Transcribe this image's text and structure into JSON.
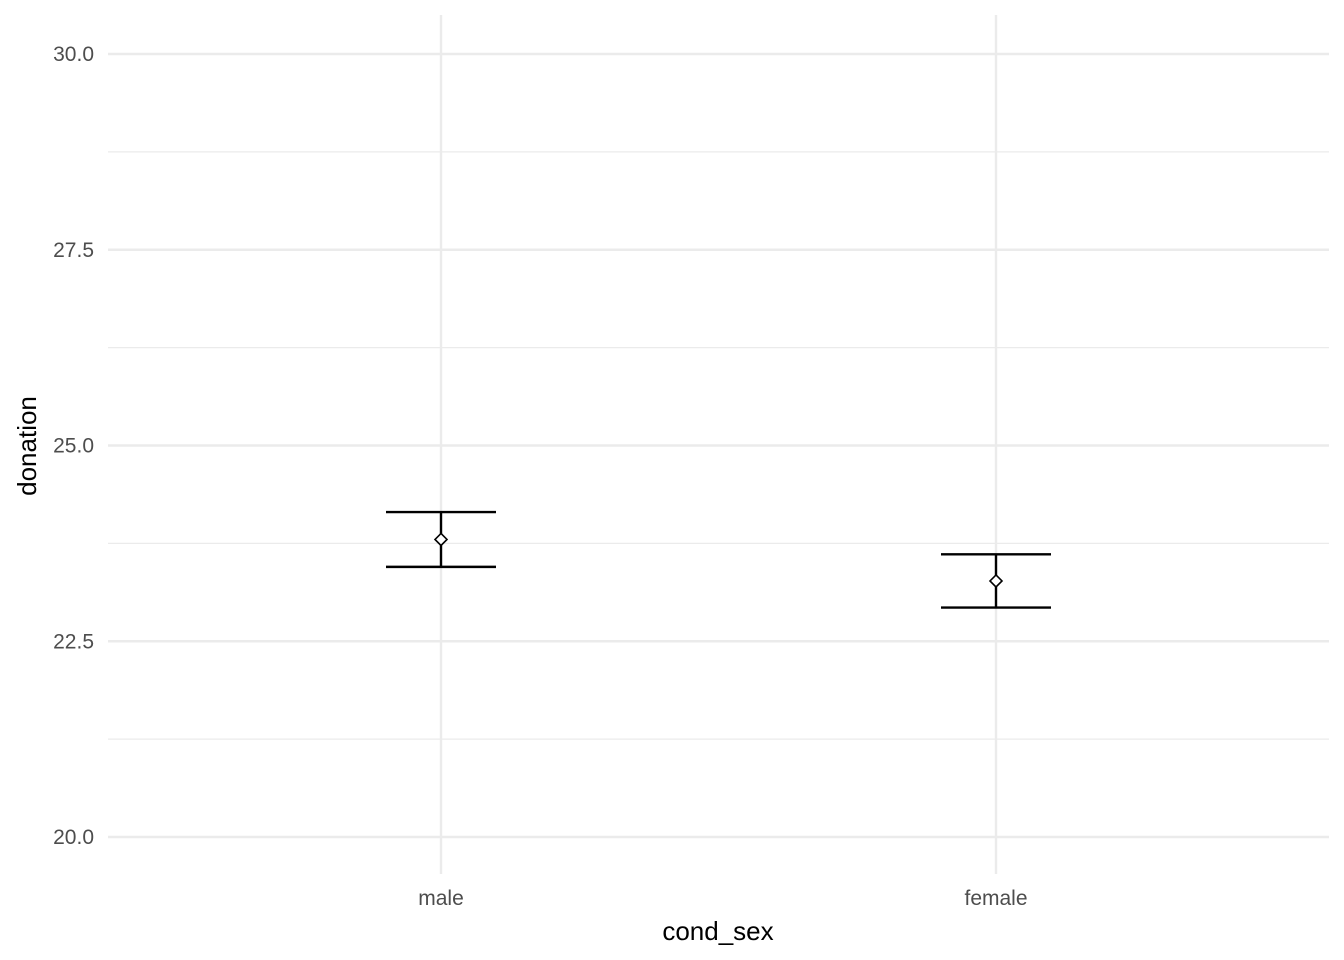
{
  "chart_data": {
    "type": "errorbar",
    "xlabel": "cond_sex",
    "ylabel": "donation",
    "categories": [
      "male",
      "female"
    ],
    "points": [
      {
        "category": "male",
        "mean": 23.8,
        "lower": 23.45,
        "upper": 24.15
      },
      {
        "category": "female",
        "mean": 23.27,
        "lower": 22.93,
        "upper": 23.61
      }
    ],
    "ylim": [
      19.5,
      30.5
    ],
    "y_ticks": [
      20.0,
      22.5,
      25.0,
      27.5,
      30.0
    ],
    "y_tick_labels": [
      "20.0",
      "22.5",
      "25.0",
      "27.5",
      "30.0"
    ],
    "grid": true,
    "legend": "none",
    "colors": {
      "grid": "#ebebeb",
      "marks": "#000000",
      "tick_text": "#4d4d4d"
    }
  }
}
